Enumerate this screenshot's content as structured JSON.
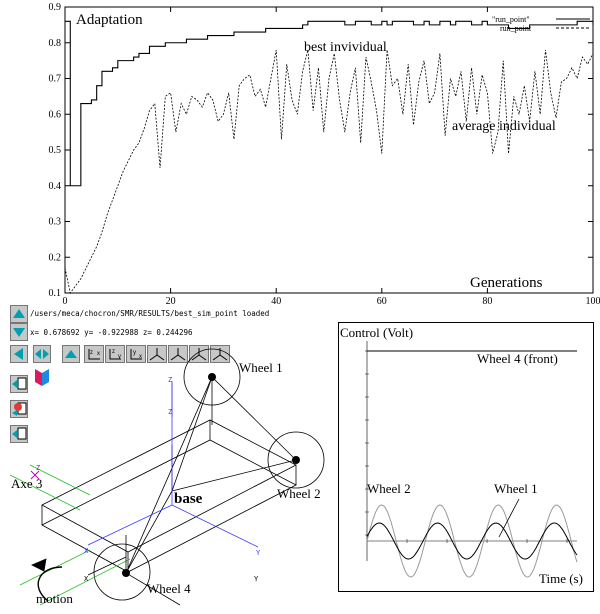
{
  "evolution_plot": {
    "ylabel": "Adaptation",
    "xlabel": "Generations",
    "legend": [
      "\"run_point\"",
      "run_point"
    ],
    "annotations": {
      "best": "best invividual",
      "average": "average individual"
    },
    "x_ticks": [
      "0",
      "20",
      "40",
      "60",
      "80",
      "100"
    ],
    "y_ticks": [
      "0.1",
      "0.2",
      "0.3",
      "0.4",
      "0.5",
      "0.6",
      "0.7",
      "0.8",
      "0.9"
    ]
  },
  "chart_data": [
    {
      "type": "line",
      "xlim": [
        0,
        100
      ],
      "ylim": [
        0.1,
        0.9
      ],
      "series": [
        {
          "name": "\"run_point\"",
          "style": "solid",
          "values": [
            0.86,
            0.4,
            0.4,
            0.63,
            0.63,
            0.64,
            0.68,
            0.72,
            0.72,
            0.73,
            0.75,
            0.75,
            0.75,
            0.76,
            0.77,
            0.77,
            0.79,
            0.79,
            0.79,
            0.8,
            0.8,
            0.8,
            0.8,
            0.81,
            0.81,
            0.81,
            0.81,
            0.82,
            0.82,
            0.82,
            0.82,
            0.82,
            0.83,
            0.83,
            0.83,
            0.83,
            0.83,
            0.83,
            0.84,
            0.84,
            0.84,
            0.84,
            0.84,
            0.84,
            0.84,
            0.85,
            0.86,
            0.86,
            0.86,
            0.86,
            0.86,
            0.86,
            0.86,
            0.85,
            0.85,
            0.86,
            0.86,
            0.86,
            0.85,
            0.85,
            0.86,
            0.85,
            0.86,
            0.86,
            0.86,
            0.86,
            0.85,
            0.85,
            0.86,
            0.85,
            0.85,
            0.86,
            0.86,
            0.85,
            0.86,
            0.86,
            0.86,
            0.85,
            0.85,
            0.86,
            0.85,
            0.85,
            0.85,
            0.85,
            0.84,
            0.84,
            0.84,
            0.84,
            0.85,
            0.85,
            0.85,
            0.85,
            0.85,
            0.85,
            0.85,
            0.85,
            0.85,
            0.86,
            0.86,
            0.86,
            0.85
          ]
        },
        {
          "name": "run_point",
          "style": "dashed",
          "values": [
            0.17,
            0.1,
            0.12,
            0.14,
            0.17,
            0.2,
            0.23,
            0.27,
            0.32,
            0.36,
            0.4,
            0.44,
            0.47,
            0.5,
            0.52,
            0.56,
            0.61,
            0.63,
            0.45,
            0.65,
            0.66,
            0.55,
            0.63,
            0.6,
            0.65,
            0.64,
            0.62,
            0.66,
            0.64,
            0.58,
            0.6,
            0.66,
            0.53,
            0.68,
            0.7,
            0.71,
            0.65,
            0.67,
            0.62,
            0.7,
            0.78,
            0.53,
            0.74,
            0.64,
            0.6,
            0.72,
            0.78,
            0.61,
            0.73,
            0.55,
            0.7,
            0.77,
            0.64,
            0.55,
            0.66,
            0.73,
            0.52,
            0.76,
            0.69,
            0.61,
            0.49,
            0.78,
            0.68,
            0.7,
            0.6,
            0.74,
            0.57,
            0.69,
            0.75,
            0.63,
            0.66,
            0.77,
            0.54,
            0.7,
            0.65,
            0.72,
            0.58,
            0.73,
            0.6,
            0.71,
            0.66,
            0.49,
            0.55,
            0.75,
            0.49,
            0.65,
            0.6,
            0.68,
            0.58,
            0.72,
            0.6,
            0.78,
            0.66,
            0.59,
            0.69,
            0.7,
            0.73,
            0.7,
            0.76,
            0.74,
            0.77
          ]
        }
      ]
    },
    {
      "type": "line",
      "ylabel": "Control (Volt)",
      "xlabel": "Time (s)",
      "annotations": {
        "w4": "Wheel 4 (front)",
        "w2": "Wheel 2",
        "w1": "Wheel 1"
      },
      "series": [
        {
          "name": "Wheel 4 (front)",
          "form": "constant",
          "level": 0.95
        },
        {
          "name": "Wheel 2",
          "form": "sine",
          "amplitude": 0.18,
          "cycles": 3.6
        },
        {
          "name": "Wheel 1",
          "form": "sine",
          "amplitude": 0.09,
          "cycles": 3.6
        }
      ]
    }
  ],
  "viewer": {
    "status_path": "/users/meca/chocron/SMR/RESULTS/best_sim_point loaded",
    "coords": "x=  0.678692 y= -0.922988 z=  0.244296",
    "labels": {
      "wheel1": "Wheel 1",
      "wheel2": "Wheel 2",
      "wheel4": "Wheel 4",
      "axe3": "Axe 3",
      "base": "base",
      "motion": "motion"
    },
    "axis_letters": [
      "X",
      "Y",
      "Z"
    ]
  },
  "colors": {
    "axis_blue": "#3a3aff",
    "axis_green": "#27c027",
    "accent_magenta": "#c000c0",
    "sine_gray": "#9a9a9a"
  }
}
